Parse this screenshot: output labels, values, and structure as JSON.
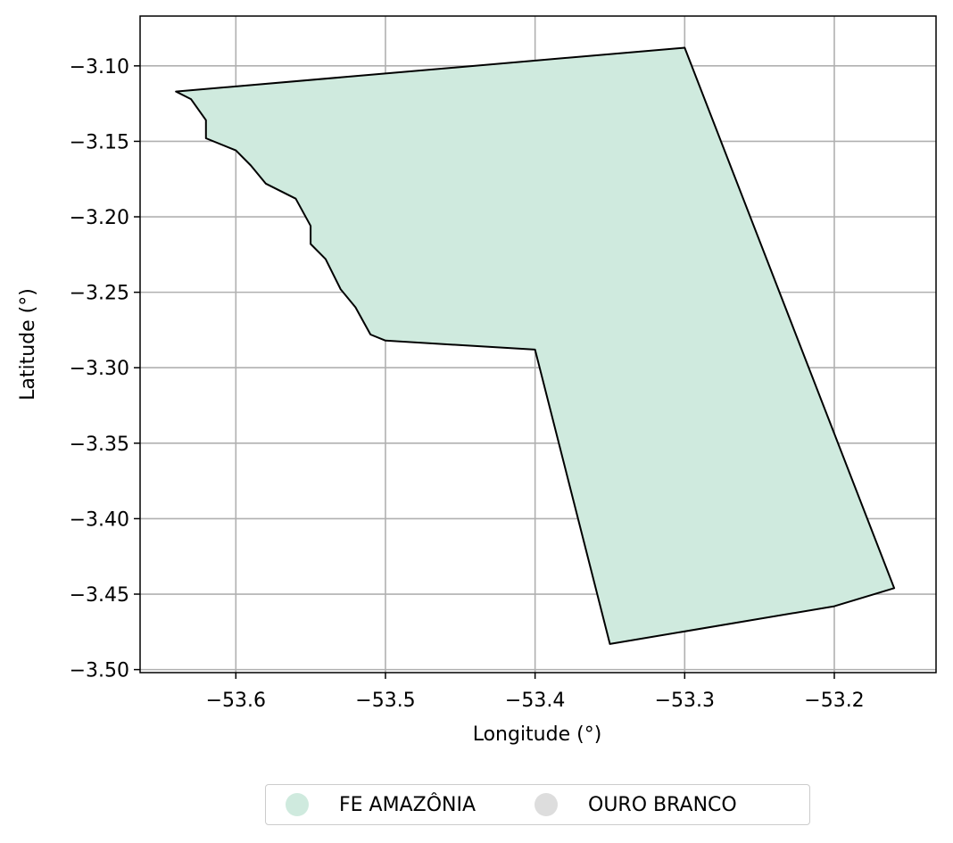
{
  "map": {
    "xlabel": "Longitude (°)",
    "ylabel": "Latitude (°)",
    "x_ticks": [
      -53.6,
      -53.5,
      -53.4,
      -53.3,
      -53.2
    ],
    "y_ticks": [
      -3.1,
      -3.15,
      -3.2,
      -3.25,
      -3.3,
      -3.35,
      -3.4,
      -3.45,
      -3.5
    ],
    "x_tick_labels": [
      "−53.6",
      "−53.5",
      "−53.4",
      "−53.3",
      "−53.2"
    ],
    "y_tick_labels": [
      "−3.10",
      "−3.15",
      "−3.20",
      "−3.25",
      "−3.30",
      "−3.35",
      "−3.40",
      "−3.45",
      "−3.50"
    ],
    "xlim": [
      -53.664,
      -53.132
    ],
    "ylim": [
      -3.502,
      -3.067
    ],
    "grid": true,
    "boundary": [
      [
        -53.64,
        -3.117
      ],
      [
        -53.3,
        -3.088
      ],
      [
        -53.16,
        -3.446
      ],
      [
        -53.2,
        -3.458
      ],
      [
        -53.35,
        -3.483
      ],
      [
        -53.4,
        -3.288
      ],
      [
        -53.5,
        -3.282
      ],
      [
        -53.51,
        -3.278
      ],
      [
        -53.52,
        -3.26
      ],
      [
        -53.53,
        -3.248
      ],
      [
        -53.54,
        -3.228
      ],
      [
        -53.55,
        -3.218
      ],
      [
        -53.55,
        -3.206
      ],
      [
        -53.56,
        -3.188
      ],
      [
        -53.58,
        -3.178
      ],
      [
        -53.59,
        -3.166
      ],
      [
        -53.6,
        -3.156
      ],
      [
        -53.62,
        -3.148
      ],
      [
        -53.62,
        -3.136
      ],
      [
        -53.63,
        -3.122
      ]
    ],
    "fill_color": "#cfeade",
    "boundary_color": "#000000"
  },
  "legend": {
    "location": "below plot, centered",
    "items": [
      {
        "label": "FE AMAZÔNIA",
        "color": "#cfeade"
      },
      {
        "label": "OURO BRANCO",
        "color": "#dddddd"
      }
    ]
  }
}
